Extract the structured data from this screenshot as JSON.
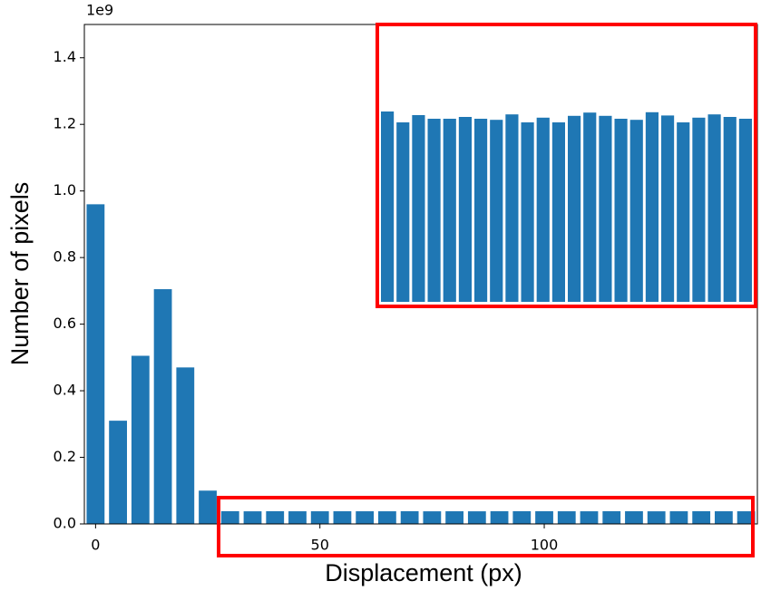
{
  "chart_data": {
    "type": "bar",
    "x_label": "Displacement (px)",
    "y_label": "Number of pixels",
    "y_scale_label": "1e9",
    "x": [
      0,
      5,
      10,
      15,
      20,
      25,
      30,
      35,
      40,
      45,
      50,
      55,
      60,
      65,
      70,
      75,
      80,
      85,
      90,
      95,
      100,
      105,
      110,
      115,
      120,
      125,
      130,
      135,
      140,
      145
    ],
    "values": [
      0.96,
      0.31,
      0.505,
      0.705,
      0.47,
      0.1,
      0.0382,
      0.0379,
      0.0381,
      0.038,
      0.038,
      0.03805,
      0.038,
      0.03797,
      0.03812,
      0.0379,
      0.03803,
      0.0379,
      0.03808,
      0.03817,
      0.03808,
      0.038,
      0.03797,
      0.03818,
      0.03809,
      0.0379,
      0.03803,
      0.03812,
      0.03805,
      0.038
    ],
    "color": "#1f77b4",
    "xlim": [
      -2.5,
      147.5
    ],
    "ylim": [
      0,
      1.5
    ],
    "xticks": [
      0,
      50,
      100
    ],
    "yticks": [
      {
        "value": 0,
        "label": "0.0"
      },
      {
        "value": 0.2,
        "label": "0.2"
      },
      {
        "value": 0.4,
        "label": "0.4"
      },
      {
        "value": 0.6,
        "label": "0.6"
      },
      {
        "value": 0.8,
        "label": "0.8"
      },
      {
        "value": 1.0,
        "label": "1.0"
      },
      {
        "value": 1.2,
        "label": "1.2"
      },
      {
        "value": 1.4,
        "label": "1.4"
      }
    ],
    "highlight_color": "#ff0000",
    "inset_from": 6
  }
}
